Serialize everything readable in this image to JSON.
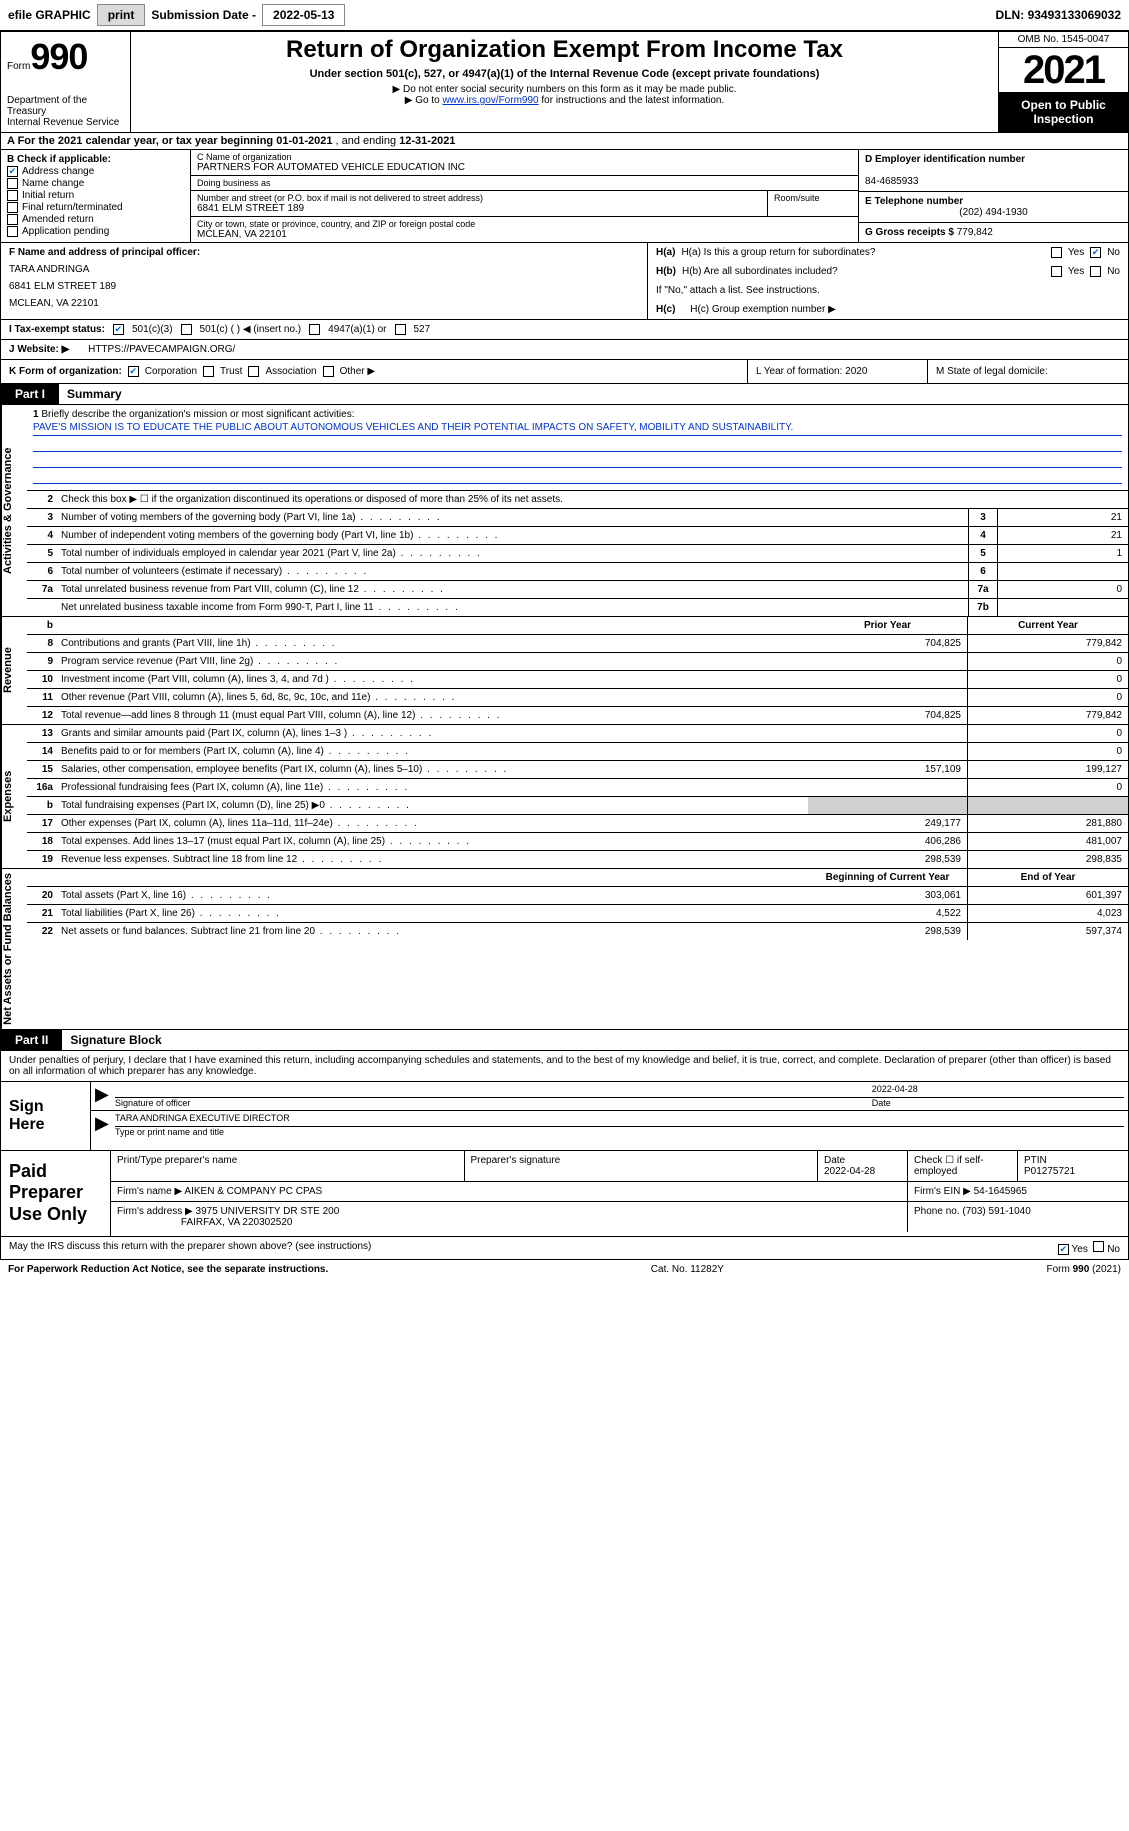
{
  "topbar": {
    "efile_label": "efile GRAPHIC",
    "print_btn": "print",
    "sub_date_label": "Submission Date -",
    "sub_date": "2022-05-13",
    "dln_label": "DLN:",
    "dln": "93493133069032"
  },
  "header": {
    "form_word": "Form",
    "form_num": "990",
    "dept": "Department of the Treasury",
    "irs": "Internal Revenue Service",
    "title": "Return of Organization Exempt From Income Tax",
    "sub1": "Under section 501(c), 527, or 4947(a)(1) of the Internal Revenue Code (except private foundations)",
    "sub2": "▶ Do not enter social security numbers on this form as it may be made public.",
    "sub3_pre": "▶ Go to ",
    "sub3_link": "www.irs.gov/Form990",
    "sub3_post": " for instructions and the latest information.",
    "omb": "OMB No. 1545-0047",
    "year": "2021",
    "open": "Open to Public Inspection"
  },
  "rowA": {
    "text_pre": "A For the 2021 calendar year, or tax year beginning ",
    "begin": "01-01-2021",
    "mid": " , and ending ",
    "end": "12-31-2021"
  },
  "sectionB": {
    "label": "B Check if applicable:",
    "items": [
      {
        "label": "Address change",
        "checked": true
      },
      {
        "label": "Name change",
        "checked": false
      },
      {
        "label": "Initial return",
        "checked": false
      },
      {
        "label": "Final return/terminated",
        "checked": false
      },
      {
        "label": "Amended return",
        "checked": false
      },
      {
        "label": "Application pending",
        "checked": false
      }
    ]
  },
  "sectionC": {
    "name_label": "C Name of organization",
    "name": "PARTNERS FOR AUTOMATED VEHICLE EDUCATION INC",
    "dba_label": "Doing business as",
    "dba": "",
    "addr_label": "Number and street (or P.O. box if mail is not delivered to street address)",
    "room_label": "Room/suite",
    "addr": "6841 ELM STREET 189",
    "city_label": "City or town, state or province, country, and ZIP or foreign postal code",
    "city": "MCLEAN, VA  22101"
  },
  "sectionD": {
    "label": "D Employer identification number",
    "val": "84-4685933"
  },
  "sectionE": {
    "label": "E Telephone number",
    "val": "(202) 494-1930"
  },
  "sectionG": {
    "label": "G Gross receipts $",
    "val": "779,842"
  },
  "sectionF": {
    "label": "F Name and address of principal officer:",
    "name": "TARA ANDRINGA",
    "addr": "6841 ELM STREET 189",
    "city": "MCLEAN, VA  22101"
  },
  "sectionH": {
    "a_label": "H(a)  Is this a group return for subordinates?",
    "a_yes": "Yes",
    "a_no": "No",
    "a_no_checked": true,
    "b_label": "H(b)  Are all subordinates included?",
    "b_note": "If \"No,\" attach a list. See instructions.",
    "c_label": "H(c)  Group exemption number ▶"
  },
  "sectionI": {
    "label": "I   Tax-exempt status:",
    "opt1": "501(c)(3)",
    "opt1_checked": true,
    "opt2": "501(c) (  ) ◀ (insert no.)",
    "opt3": "4947(a)(1) or",
    "opt4": "527"
  },
  "sectionJ": {
    "label": "J   Website: ▶",
    "val": "HTTPS://PAVECAMPAIGN.ORG/"
  },
  "sectionK": {
    "label": "K Form of organization:",
    "opts": [
      "Corporation",
      "Trust",
      "Association",
      "Other ▶"
    ],
    "checked": 0,
    "L": "L Year of formation: 2020",
    "M": "M State of legal domicile:"
  },
  "part1": {
    "tag": "Part I",
    "title": "Summary"
  },
  "vtabs": {
    "ag": "Activities & Governance",
    "rev": "Revenue",
    "exp": "Expenses",
    "na": "Net Assets or Fund Balances"
  },
  "brief": {
    "num": "1",
    "label": "Briefly describe the organization's mission or most significant activities:",
    "text": "PAVE'S MISSION IS TO EDUCATE THE PUBLIC ABOUT AUTONOMOUS VEHICLES AND THEIR POTENTIAL IMPACTS ON SAFETY, MOBILITY AND SUSTAINABILITY."
  },
  "line2": {
    "num": "2",
    "text": "Check this box ▶ ☐ if the organization discontinued its operations or disposed of more than 25% of its net assets."
  },
  "ag_lines": [
    {
      "num": "3",
      "text": "Number of voting members of the governing body (Part VI, line 1a)",
      "key": "3",
      "val": "21"
    },
    {
      "num": "4",
      "text": "Number of independent voting members of the governing body (Part VI, line 1b)",
      "key": "4",
      "val": "21"
    },
    {
      "num": "5",
      "text": "Total number of individuals employed in calendar year 2021 (Part V, line 2a)",
      "key": "5",
      "val": "1"
    },
    {
      "num": "6",
      "text": "Total number of volunteers (estimate if necessary)",
      "key": "6",
      "val": ""
    },
    {
      "num": "7a",
      "text": "Total unrelated business revenue from Part VIII, column (C), line 12",
      "key": "7a",
      "val": "0"
    },
    {
      "num": "",
      "text": "Net unrelated business taxable income from Form 990-T, Part I, line 11",
      "key": "7b",
      "val": ""
    }
  ],
  "col_hdrs": {
    "b": "b",
    "prior": "Prior Year",
    "current": "Current Year"
  },
  "rev_lines": [
    {
      "num": "8",
      "text": "Contributions and grants (Part VIII, line 1h)",
      "prior": "704,825",
      "cur": "779,842"
    },
    {
      "num": "9",
      "text": "Program service revenue (Part VIII, line 2g)",
      "prior": "",
      "cur": "0"
    },
    {
      "num": "10",
      "text": "Investment income (Part VIII, column (A), lines 3, 4, and 7d )",
      "prior": "",
      "cur": "0"
    },
    {
      "num": "11",
      "text": "Other revenue (Part VIII, column (A), lines 5, 6d, 8c, 9c, 10c, and 11e)",
      "prior": "",
      "cur": "0"
    },
    {
      "num": "12",
      "text": "Total revenue—add lines 8 through 11 (must equal Part VIII, column (A), line 12)",
      "prior": "704,825",
      "cur": "779,842"
    }
  ],
  "exp_lines": [
    {
      "num": "13",
      "text": "Grants and similar amounts paid (Part IX, column (A), lines 1–3 )",
      "prior": "",
      "cur": "0"
    },
    {
      "num": "14",
      "text": "Benefits paid to or for members (Part IX, column (A), line 4)",
      "prior": "",
      "cur": "0"
    },
    {
      "num": "15",
      "text": "Salaries, other compensation, employee benefits (Part IX, column (A), lines 5–10)",
      "prior": "157,109",
      "cur": "199,127"
    },
    {
      "num": "16a",
      "text": "Professional fundraising fees (Part IX, column (A), line 11e)",
      "prior": "",
      "cur": "0"
    },
    {
      "num": "b",
      "text": "Total fundraising expenses (Part IX, column (D), line 25) ▶0",
      "prior": "",
      "cur": "",
      "shade": true
    },
    {
      "num": "17",
      "text": "Other expenses (Part IX, column (A), lines 11a–11d, 11f–24e)",
      "prior": "249,177",
      "cur": "281,880"
    },
    {
      "num": "18",
      "text": "Total expenses. Add lines 13–17 (must equal Part IX, column (A), line 25)",
      "prior": "406,286",
      "cur": "481,007"
    },
    {
      "num": "19",
      "text": "Revenue less expenses. Subtract line 18 from line 12",
      "prior": "298,539",
      "cur": "298,835"
    }
  ],
  "na_hdrs": {
    "beg": "Beginning of Current Year",
    "end": "End of Year"
  },
  "na_lines": [
    {
      "num": "20",
      "text": "Total assets (Part X, line 16)",
      "prior": "303,061",
      "cur": "601,397"
    },
    {
      "num": "21",
      "text": "Total liabilities (Part X, line 26)",
      "prior": "4,522",
      "cur": "4,023"
    },
    {
      "num": "22",
      "text": "Net assets or fund balances. Subtract line 21 from line 20",
      "prior": "298,539",
      "cur": "597,374"
    }
  ],
  "part2": {
    "tag": "Part II",
    "title": "Signature Block"
  },
  "sig": {
    "decl": "Under penalties of perjury, I declare that I have examined this return, including accompanying schedules and statements, and to the best of my knowledge and belief, it is true, correct, and complete. Declaration of preparer (other than officer) is based on all information of which preparer has any knowledge.",
    "sign_here": "Sign Here",
    "sig_officer": "Signature of officer",
    "date_label": "Date",
    "date": "2022-04-28",
    "name_title": "TARA ANDRINGA  EXECUTIVE DIRECTOR",
    "type_label": "Type or print name and title"
  },
  "prep": {
    "label": "Paid Preparer Use Only",
    "print_label": "Print/Type preparer's name",
    "sig_label": "Preparer's signature",
    "date_label": "Date",
    "date": "2022-04-28",
    "check_label": "Check ☐ if self-employed",
    "ptin_label": "PTIN",
    "ptin": "P01275721",
    "firm_name_label": "Firm's name    ▶",
    "firm_name": "AIKEN & COMPANY PC CPAS",
    "firm_ein_label": "Firm's EIN ▶",
    "firm_ein": "54-1645965",
    "firm_addr_label": "Firm's address ▶",
    "firm_addr1": "3975 UNIVERSITY DR STE 200",
    "firm_addr2": "FAIRFAX, VA  220302520",
    "phone_label": "Phone no.",
    "phone": "(703) 591-1040"
  },
  "discuss": {
    "text": "May the IRS discuss this return with the preparer shown above? (see instructions)",
    "yes": "Yes",
    "no": "No",
    "yes_checked": true
  },
  "footer": {
    "left": "For Paperwork Reduction Act Notice, see the separate instructions.",
    "mid": "Cat. No. 11282Y",
    "right": "Form 990 (2021)"
  },
  "colors": {
    "link": "#0033cc",
    "shade": "#d0d0d0",
    "check": "#0066cc"
  }
}
